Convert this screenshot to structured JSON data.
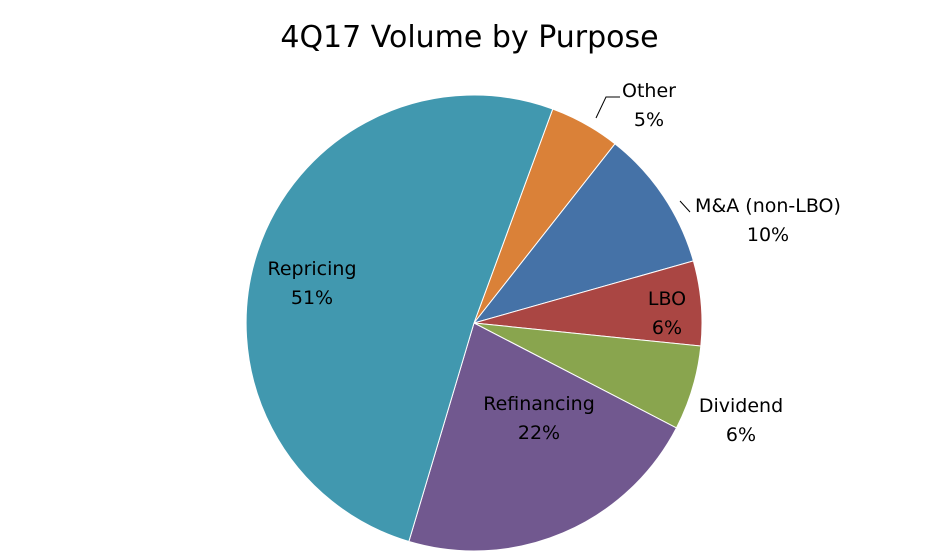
{
  "chart_data": {
    "type": "pie",
    "title": "4Q17 Volume by Purpose",
    "slices": [
      {
        "label": "Other",
        "value": 5,
        "display": "5%",
        "color": "#DA8138"
      },
      {
        "label": "M&A (non-LBO)",
        "value": 10,
        "display": "10%",
        "color": "#4572A7"
      },
      {
        "label": "LBO",
        "value": 6,
        "display": "6%",
        "color": "#AA4643"
      },
      {
        "label": "Dividend",
        "value": 6,
        "display": "6%",
        "color": "#89A54E"
      },
      {
        "label": "Refinancing",
        "value": 22,
        "display": "22%",
        "color": "#71588F"
      },
      {
        "label": "Repricing",
        "value": 51,
        "display": "51%",
        "color": "#4198AF"
      }
    ],
    "start_angle_deg": 20.2,
    "direction": "clockwise",
    "legend": "none",
    "data_labels": "category-and-percent"
  }
}
